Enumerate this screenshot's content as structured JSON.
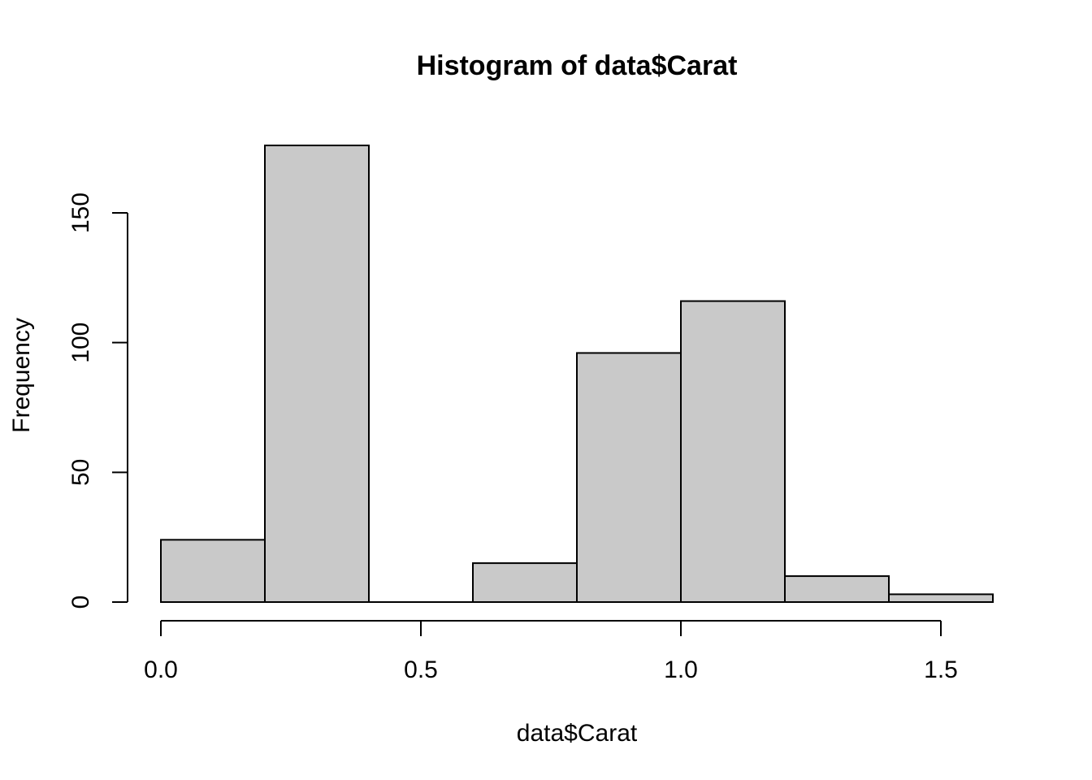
{
  "chart_data": {
    "type": "bar",
    "title": "Histogram of data$Carat",
    "xlabel": "data$Carat",
    "ylabel": "Frequency",
    "bin_edges": [
      0.0,
      0.2,
      0.4,
      0.6,
      0.8,
      1.0,
      1.2,
      1.4,
      1.6
    ],
    "values": [
      24,
      176,
      0,
      15,
      96,
      116,
      10,
      3
    ],
    "x_ticks": [
      {
        "value": 0.0,
        "label": "0.0"
      },
      {
        "value": 0.5,
        "label": "0.5"
      },
      {
        "value": 1.0,
        "label": "1.0"
      },
      {
        "value": 1.5,
        "label": "1.5"
      }
    ],
    "y_ticks": [
      {
        "value": 0,
        "label": "0"
      },
      {
        "value": 50,
        "label": "50"
      },
      {
        "value": 100,
        "label": "100"
      },
      {
        "value": 150,
        "label": "150"
      }
    ],
    "bar_color": "#c9c9c9",
    "grid": false
  }
}
